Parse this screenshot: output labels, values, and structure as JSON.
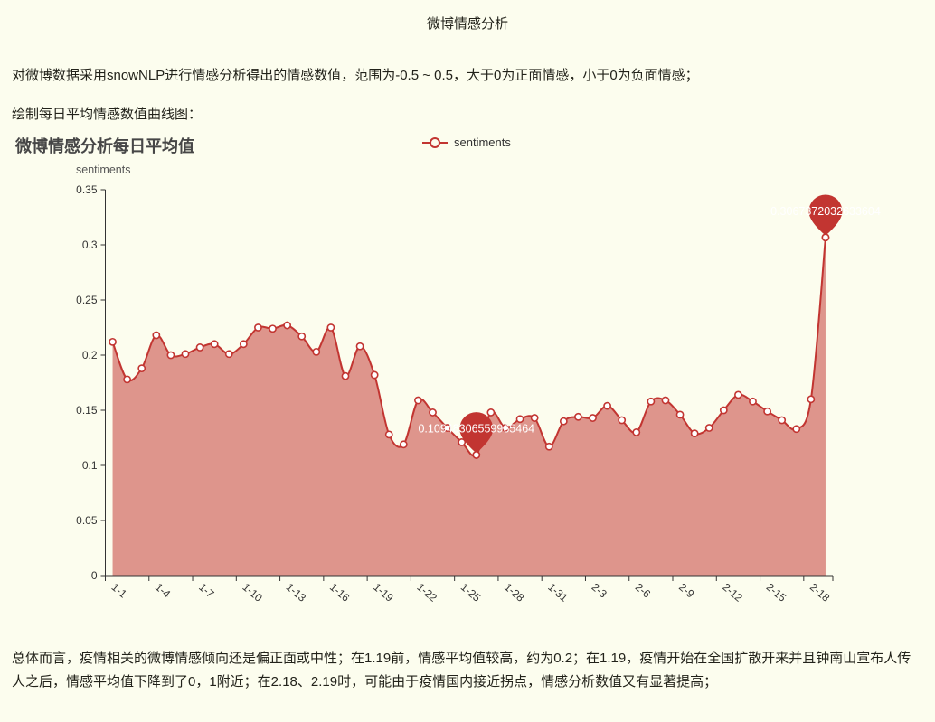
{
  "page": {
    "title": "微博情感分析",
    "intro_1": "对微博数据采用snowNLP进行情感分析得出的情感数值，范围为-0.5 ~ 0.5，大于0为正面情感，小于0为负面情感；",
    "intro_2": "绘制每日平均情感数值曲线图：",
    "summary": "总体而言，疫情相关的微博情感倾向还是偏正面或中性；在1.19前，情感平均值较高，约为0.2；在1.19，疫情开始在全国扩散开来并且钟南山宣布人传人之后，情感平均值下降到了0，1附近；在2.18、2.19时，可能由于疫情国内接近拐点，情感分析数值又有显著提高；"
  },
  "chart": {
    "title": "微博情感分析每日平均值",
    "legend_label": "sentiments",
    "y_axis_name": "sentiments",
    "colors": {
      "line": "#c23531",
      "area": "rgba(194,53,49,0.52)",
      "pin": "#c23531",
      "axis": "#333333",
      "tick_text": "#333333",
      "marker_fill": "#ffffff",
      "background": "#fcfdee"
    }
  },
  "chart_data": {
    "type": "area",
    "title": "微博情感分析每日平均值",
    "series_name": "sentiments",
    "x": [
      "1-1",
      "1-2",
      "1-3",
      "1-4",
      "1-5",
      "1-6",
      "1-7",
      "1-8",
      "1-9",
      "1-10",
      "1-11",
      "1-12",
      "1-13",
      "1-14",
      "1-15",
      "1-16",
      "1-17",
      "1-18",
      "1-19",
      "1-20",
      "1-21",
      "1-22",
      "1-23",
      "1-24",
      "1-25",
      "1-26",
      "1-27",
      "1-28",
      "1-29",
      "1-30",
      "1-31",
      "2-1",
      "2-2",
      "2-3",
      "2-4",
      "2-5",
      "2-6",
      "2-7",
      "2-8",
      "2-9",
      "2-10",
      "2-11",
      "2-12",
      "2-13",
      "2-14",
      "2-15",
      "2-16",
      "2-17",
      "2-18",
      "2-19"
    ],
    "values": [
      0.212,
      0.178,
      0.188,
      0.218,
      0.2,
      0.201,
      0.207,
      0.21,
      0.201,
      0.21,
      0.225,
      0.224,
      0.227,
      0.217,
      0.203,
      0.225,
      0.181,
      0.208,
      0.182,
      0.128,
      0.119,
      0.159,
      0.148,
      0.134,
      0.121,
      0.10948306559965464,
      0.148,
      0.134,
      0.142,
      0.143,
      0.117,
      0.14,
      0.144,
      0.143,
      0.154,
      0.141,
      0.13,
      0.158,
      0.159,
      0.146,
      0.129,
      0.134,
      0.15,
      0.164,
      0.158,
      0.149,
      0.141,
      0.133,
      0.16,
      0.3067372032633604
    ],
    "ylabel": "sentiments",
    "ylim": [
      0,
      0.35
    ],
    "yticks": [
      "0",
      "0.05",
      "0.1",
      "0.15",
      "0.2",
      "0.25",
      "0.3",
      "0.35"
    ],
    "x_label_every": 3,
    "x_label_rotate": 40,
    "grid": false,
    "legend_position": "top-center",
    "min_marker": {
      "date": "1-26",
      "value": 0.10948306559965464,
      "label": "0.10948306559965464"
    },
    "max_marker": {
      "date": "2-19",
      "value": 0.3067372032633604,
      "label": "0.3067372032633604"
    }
  }
}
